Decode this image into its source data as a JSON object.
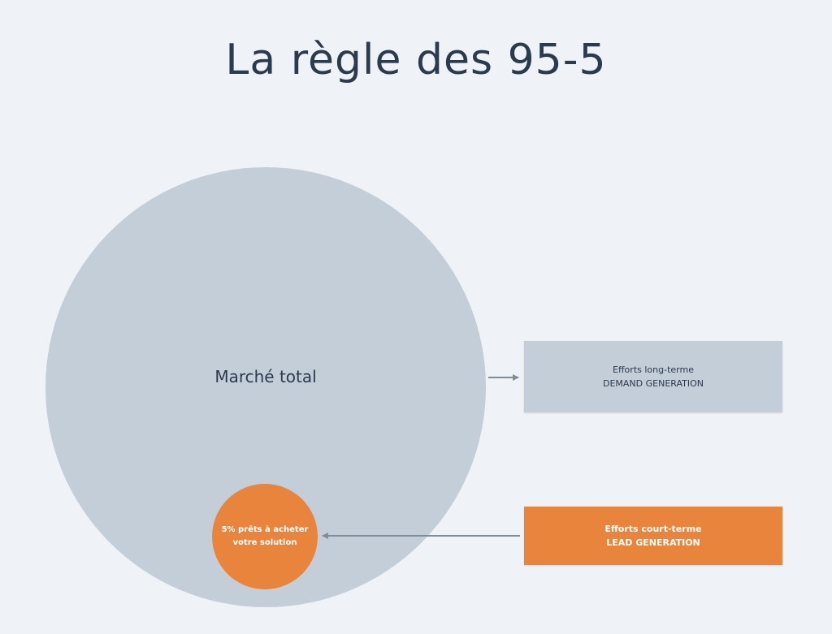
{
  "title": "La règle des 95-5",
  "market": {
    "label": "Marché total"
  },
  "segment": {
    "line1": "5% prêts à acheter",
    "line2": "votre solution"
  },
  "demand_box": {
    "line1": "Efforts long-terme",
    "line2": "DEMAND GENERATION"
  },
  "lead_box": {
    "line1": "Efforts court-terme",
    "line2": "LEAD GENERATION"
  },
  "colors": {
    "background": "#eff2f6",
    "grey": "#c3ced8",
    "orange": "#e8843b",
    "text": "#2b3a4d",
    "arrow": "#7f8c99"
  }
}
